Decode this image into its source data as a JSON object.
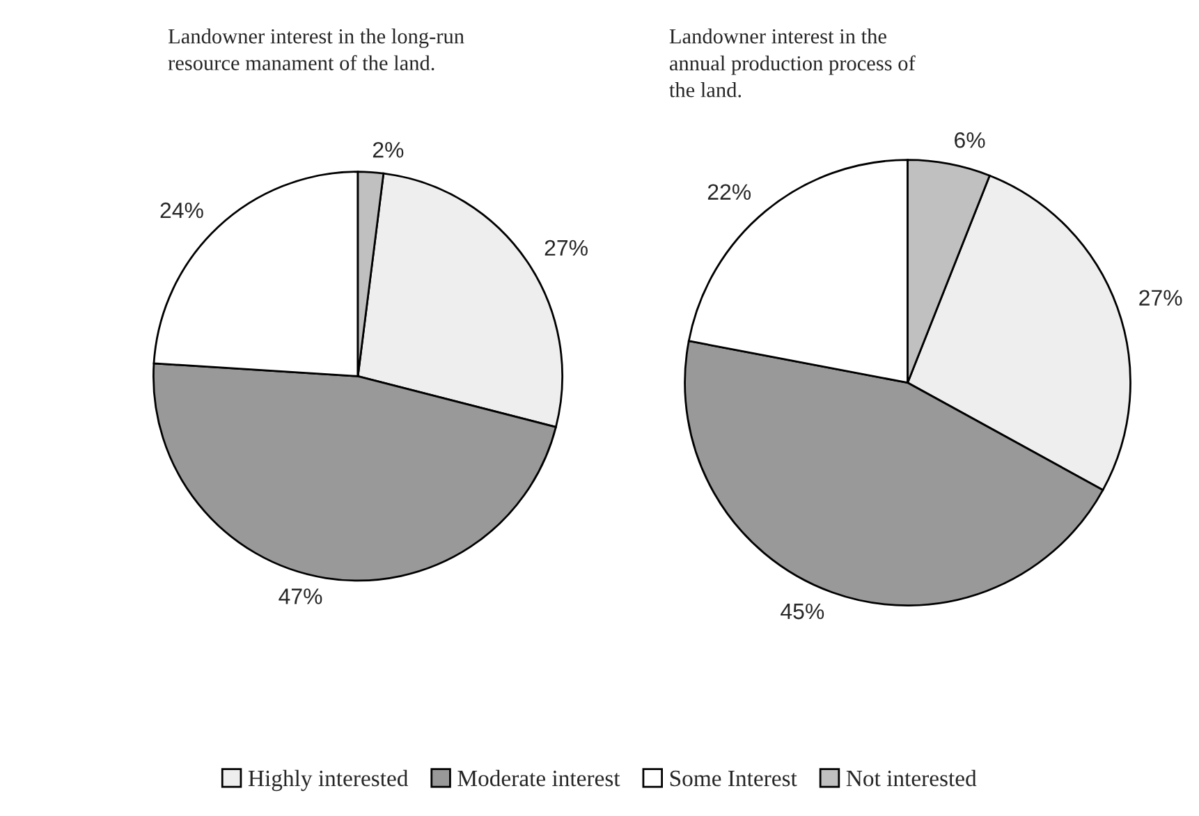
{
  "chart_data": [
    {
      "type": "pie",
      "title": "Landowner interest in the long-run\nresource manament of the land.",
      "categories": [
        "Highly interested",
        "Moderate interest",
        "Some Interest",
        "Not interested"
      ],
      "values": [
        27,
        47,
        24,
        2
      ],
      "value_labels": [
        "27%",
        "47%",
        "24%",
        "2%"
      ],
      "colors": [
        "#eeeeee",
        "#999999",
        "#ffffff",
        "#c0c0c0"
      ],
      "legend": "bottom"
    },
    {
      "type": "pie",
      "title": "Landowner interest in the\nannual production process of\nthe land.",
      "categories": [
        null,
        null,
        null,
        null
      ],
      "values": [
        27,
        45,
        22,
        6
      ],
      "value_labels": [
        "27%",
        "45%",
        "22%",
        "6%"
      ],
      "colors": [
        "#eeeeee",
        "#999999",
        "#ffffff",
        "#c0c0c0"
      ]
    }
  ]
}
